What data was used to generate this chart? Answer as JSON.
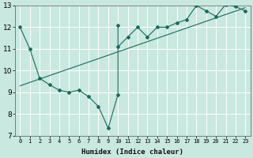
{
  "xlabel": "Humidex (Indice chaleur)",
  "bg_color": "#c8e8e0",
  "line_color": "#1a6b5a",
  "grid_color": "#ffffff",
  "xlim": [
    -0.5,
    23.5
  ],
  "ylim": [
    7,
    13
  ],
  "yticks": [
    7,
    8,
    9,
    10,
    11,
    12,
    13
  ],
  "xticks": [
    0,
    1,
    2,
    3,
    4,
    5,
    6,
    7,
    8,
    9,
    10,
    11,
    12,
    13,
    14,
    15,
    16,
    17,
    18,
    19,
    20,
    21,
    22,
    23
  ],
  "series1_x": [
    0,
    1,
    2,
    3,
    4,
    5,
    6,
    7,
    8,
    9,
    10,
    10
  ],
  "series1_y": [
    12.0,
    11.0,
    9.65,
    9.35,
    9.1,
    9.0,
    9.1,
    8.8,
    8.35,
    7.35,
    8.9,
    12.1
  ],
  "series2_x": [
    10,
    11,
    12,
    13,
    14,
    15,
    16,
    17,
    18,
    19,
    20,
    21,
    22,
    23
  ],
  "series2_y": [
    11.1,
    11.55,
    12.0,
    11.55,
    12.0,
    12.0,
    12.2,
    12.35,
    13.0,
    12.75,
    12.5,
    13.05,
    12.95,
    12.75
  ],
  "trend_x": [
    0,
    23
  ],
  "trend_y": [
    9.3,
    12.9
  ]
}
